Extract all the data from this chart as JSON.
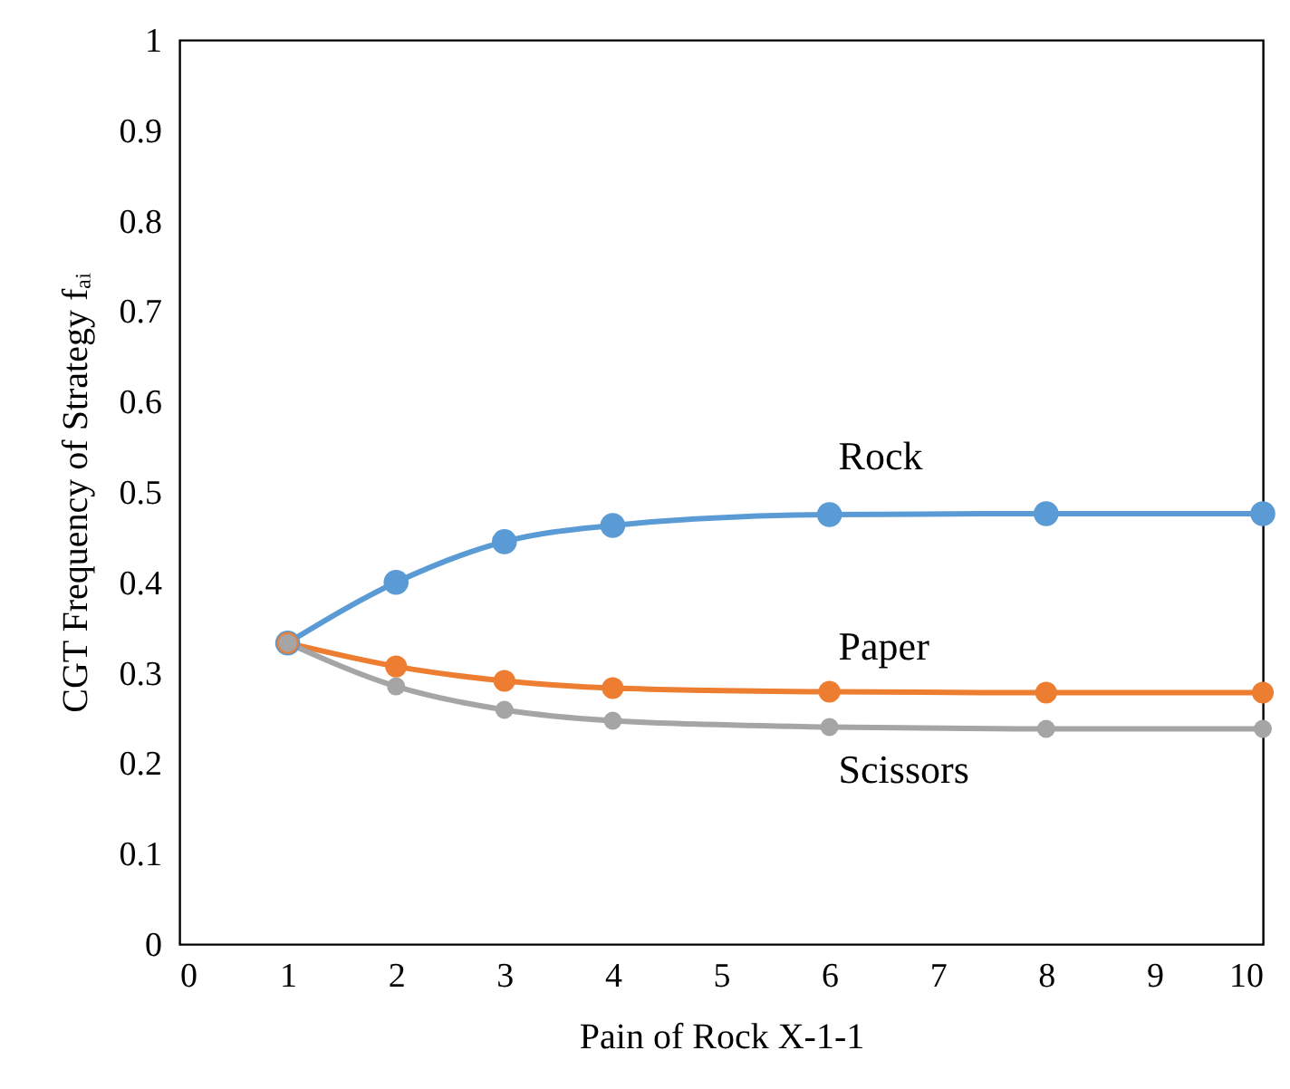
{
  "chart_data": {
    "type": "line",
    "xlabel": "Pain of Rock X-1-1",
    "ylabel": "CGT Frequency of Strategy fₐᵢ",
    "x": [
      1,
      2,
      3,
      4,
      6,
      8,
      10
    ],
    "series": [
      {
        "name": "Rock",
        "color": "#5b9bd5",
        "values": [
          0.333,
          0.4,
          0.445,
          0.463,
          0.475,
          0.476,
          0.476
        ]
      },
      {
        "name": "Paper",
        "color": "#ed7d31",
        "values": [
          0.333,
          0.307,
          0.291,
          0.283,
          0.279,
          0.278,
          0.278
        ]
      },
      {
        "name": "Scissors",
        "color": "#a5a5a5",
        "values": [
          0.333,
          0.285,
          0.259,
          0.247,
          0.24,
          0.238,
          0.238
        ]
      }
    ],
    "xlim": [
      0,
      10
    ],
    "xticks": [
      0,
      1,
      2,
      3,
      4,
      5,
      6,
      7,
      8,
      9,
      10
    ],
    "ylim": [
      0,
      1
    ],
    "yticks": [
      0,
      0.1,
      0.2,
      0.3,
      0.4,
      0.5,
      0.6,
      0.7,
      0.8,
      0.9,
      1
    ],
    "grid": false,
    "legend": false,
    "marker": "circle",
    "line_style": "solid"
  }
}
